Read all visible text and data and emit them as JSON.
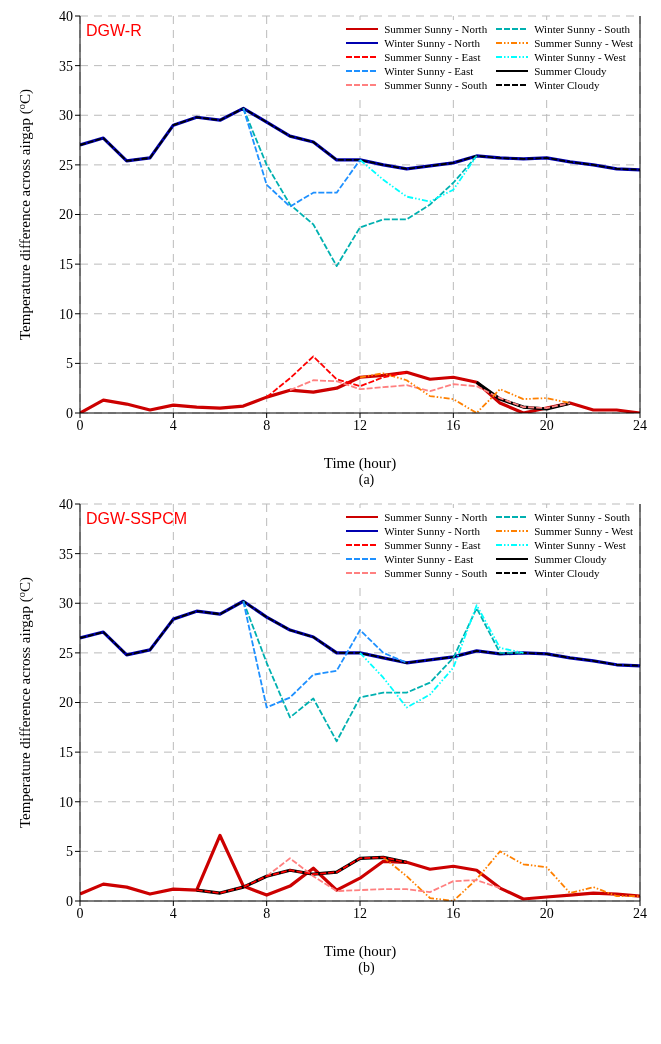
{
  "chart_data": [
    {
      "type": "line",
      "title": "DGW-R",
      "xlabel": "Time (hour)",
      "ylabel": "Temperature difference across airgap ($^{o}$C)",
      "annotations": [
        "(a)"
      ],
      "x": [
        0,
        1,
        2,
        3,
        4,
        5,
        6,
        7,
        8,
        9,
        10,
        11,
        12,
        13,
        14,
        15,
        16,
        17,
        18,
        19,
        20,
        21,
        22,
        23,
        24
      ],
      "xlim": [
        0,
        24
      ],
      "xticks": [
        0,
        4,
        8,
        12,
        16,
        20,
        24
      ],
      "ylim": [
        0,
        40
      ],
      "yticks": [
        0,
        5,
        10,
        15,
        20,
        25,
        30,
        35,
        40
      ],
      "grid": true,
      "legend": "top right",
      "marker": "none",
      "series": [
        {
          "name": "Summer Sunny - North",
          "color": "#cc0000",
          "line_style": "solid",
          "values": [
            0,
            1.3,
            0.9,
            0.3,
            0.8,
            0.6,
            0.5,
            0.7,
            1.6,
            2.3,
            2.1,
            2.5,
            3.6,
            3.8,
            4.1,
            3.4,
            3.6,
            3.1,
            1.0,
            0,
            0.5,
            1.0,
            0.3,
            0.3,
            0
          ]
        },
        {
          "name": "Winter Sunny - North",
          "color": "#0000b0",
          "line_style": "solid",
          "values": [
            27,
            27.7,
            25.4,
            25.7,
            29,
            29.8,
            29.5,
            30.7,
            29.3,
            27.9,
            27.3,
            25.5,
            25.5,
            25.0,
            24.6,
            24.9,
            25.2,
            25.9,
            25.7,
            25.6,
            25.7,
            25.3,
            25.0,
            24.6,
            24.5
          ]
        },
        {
          "name": "Summer Sunny - East",
          "color": "#ff0000",
          "line_style": "dashed",
          "values": [
            null,
            null,
            null,
            null,
            null,
            null,
            null,
            null,
            1.6,
            3.5,
            5.7,
            3.4,
            2.7,
            3.6,
            4.1,
            null,
            null,
            null,
            null,
            null,
            null,
            null,
            null,
            null,
            null
          ]
        },
        {
          "name": "Winter Sunny - East",
          "color": "#1e90ff",
          "line_style": "dashed",
          "values": [
            null,
            null,
            null,
            null,
            null,
            null,
            null,
            30.7,
            23,
            20.8,
            22.2,
            22.2,
            25.5,
            null,
            null,
            null,
            null,
            null,
            null,
            null,
            null,
            null,
            null,
            null,
            null
          ]
        },
        {
          "name": "Summer Sunny - South",
          "color": "#ff8080",
          "line_style": "dashed",
          "values": [
            null,
            null,
            null,
            null,
            null,
            null,
            null,
            null,
            null,
            2.3,
            3.3,
            3.2,
            2.4,
            2.6,
            2.8,
            2.2,
            2.9,
            2.7,
            1.5,
            0.6,
            0.5,
            1.0,
            null,
            null,
            null
          ]
        },
        {
          "name": "Winter Sunny - South",
          "color": "#00b0b0",
          "line_style": "dashed",
          "values": [
            null,
            null,
            null,
            null,
            null,
            null,
            null,
            30.7,
            25,
            21,
            19,
            14.8,
            18.7,
            19.5,
            19.5,
            21,
            23.2,
            25.9,
            null,
            null,
            null,
            null,
            null,
            null,
            null
          ]
        },
        {
          "name": "Summer Sunny - West",
          "color": "#ff8000",
          "line_style": "dotted",
          "values": [
            null,
            null,
            null,
            null,
            null,
            null,
            null,
            null,
            null,
            null,
            null,
            null,
            3.6,
            4.0,
            3.3,
            1.7,
            1.4,
            0,
            2.4,
            1.4,
            1.5,
            1.0,
            null,
            null,
            null
          ]
        },
        {
          "name": "Winter Sunny - West",
          "color": "#00ffff",
          "line_style": "dotted",
          "values": [
            null,
            null,
            null,
            null,
            null,
            null,
            null,
            null,
            null,
            null,
            null,
            null,
            25.5,
            23.5,
            21.8,
            21.3,
            22.5,
            25.9,
            null,
            null,
            null,
            null,
            null,
            null,
            null
          ]
        },
        {
          "name": "Summer Cloudy",
          "color": "#000000",
          "line_style": "solid",
          "values": [
            null,
            null,
            null,
            null,
            null,
            null,
            null,
            null,
            null,
            null,
            null,
            null,
            null,
            null,
            null,
            null,
            null,
            3.1,
            1.4,
            0.6,
            0.4,
            1.0,
            null,
            null,
            null
          ]
        },
        {
          "name": "Winter Cloudy",
          "color": "#000000",
          "line_style": "dashed",
          "values": [
            27,
            27.7,
            25.4,
            25.7,
            29,
            29.8,
            29.5,
            30.7,
            29.3,
            27.9,
            27.3,
            25.5,
            25.5,
            25.0,
            24.6,
            24.9,
            25.2,
            25.9,
            25.7,
            25.6,
            25.7,
            25.3,
            25.0,
            24.6,
            24.5
          ]
        }
      ]
    },
    {
      "type": "line",
      "title": "DGW-SSPCM",
      "xlabel": "Time (hour)",
      "ylabel": "Temperature difference across airgap ($^{o}$C)",
      "annotations": [
        "(b)"
      ],
      "x": [
        0,
        1,
        2,
        3,
        4,
        5,
        6,
        7,
        8,
        9,
        10,
        11,
        12,
        13,
        14,
        15,
        16,
        17,
        18,
        19,
        20,
        21,
        22,
        23,
        24
      ],
      "xlim": [
        0,
        24
      ],
      "xticks": [
        0,
        4,
        8,
        12,
        16,
        20,
        24
      ],
      "ylim": [
        0,
        40
      ],
      "yticks": [
        0,
        5,
        10,
        15,
        20,
        25,
        30,
        35,
        40
      ],
      "grid": true,
      "legend": "top right",
      "marker": "none",
      "series": [
        {
          "name": "Summer Sunny - North",
          "color": "#cc0000",
          "line_style": "solid",
          "values": [
            0.7,
            1.7,
            1.4,
            0.7,
            1.2,
            1.1,
            6.6,
            1.5,
            0.6,
            1.5,
            3.3,
            1.1,
            2.3,
            4.0,
            3.9,
            3.2,
            3.5,
            3.1,
            1.3,
            0.2,
            0.4,
            0.6,
            0.8,
            0.7,
            0.5
          ]
        },
        {
          "name": "Winter Sunny - North",
          "color": "#0000b0",
          "line_style": "solid",
          "values": [
            26.5,
            27.1,
            24.8,
            25.3,
            28.4,
            29.2,
            28.9,
            30.2,
            28.6,
            27.3,
            26.6,
            25,
            25,
            24.5,
            24,
            24.3,
            24.6,
            25.2,
            24.9,
            25,
            24.9,
            24.5,
            24.2,
            23.8,
            23.7
          ]
        },
        {
          "name": "Summer Sunny - East",
          "color": "#ff0000",
          "line_style": "dashed",
          "values": [
            null,
            null,
            null,
            null,
            null,
            1.1,
            0.8,
            1.4,
            2.5,
            3.1,
            2.7,
            2.9,
            4.3,
            4.4,
            3.9,
            null,
            null,
            null,
            null,
            null,
            null,
            null,
            null,
            null,
            null
          ]
        },
        {
          "name": "Winter Sunny - East",
          "color": "#1e90ff",
          "line_style": "dashed",
          "values": [
            null,
            null,
            null,
            null,
            null,
            null,
            null,
            30.2,
            19.5,
            20.5,
            22.8,
            23.2,
            27.3,
            25,
            24,
            null,
            null,
            null,
            null,
            null,
            null,
            null,
            null,
            null,
            null
          ]
        },
        {
          "name": "Summer Sunny - South",
          "color": "#ff8080",
          "line_style": "dashed",
          "values": [
            null,
            null,
            null,
            null,
            null,
            null,
            null,
            null,
            2.5,
            4.3,
            2.5,
            1.0,
            1.1,
            1.2,
            1.2,
            0.9,
            2.0,
            2.1,
            1.3,
            null,
            null,
            null,
            null,
            null,
            null
          ]
        },
        {
          "name": "Winter Sunny - South",
          "color": "#00b0b0",
          "line_style": "dashed",
          "values": [
            null,
            null,
            null,
            null,
            null,
            null,
            null,
            30.2,
            24,
            18.5,
            20.4,
            16.1,
            20.5,
            21,
            21,
            22,
            24.5,
            29.5,
            25,
            25,
            null,
            null,
            null,
            null,
            null
          ]
        },
        {
          "name": "Summer Sunny - West",
          "color": "#ff8000",
          "line_style": "dotted",
          "values": [
            null,
            null,
            null,
            null,
            null,
            null,
            null,
            null,
            null,
            null,
            null,
            null,
            null,
            4.4,
            2.5,
            0.3,
            0,
            2.2,
            5.0,
            3.7,
            3.4,
            0.8,
            1.4,
            0.5,
            0.5
          ]
        },
        {
          "name": "Winter Sunny - West",
          "color": "#00ffff",
          "line_style": "dotted",
          "values": [
            null,
            null,
            null,
            null,
            null,
            null,
            null,
            null,
            null,
            null,
            null,
            null,
            25,
            22.5,
            19.5,
            20.8,
            23.5,
            29.8,
            25.5,
            25,
            null,
            null,
            null,
            null,
            null
          ]
        },
        {
          "name": "Summer Cloudy",
          "color": "#000000",
          "line_style": "solid",
          "values": [
            null,
            null,
            null,
            null,
            null,
            1.1,
            0.8,
            1.4,
            2.5,
            3.1,
            2.7,
            2.9,
            4.3,
            4.4,
            3.9,
            null,
            null,
            null,
            null,
            null,
            null,
            null,
            null,
            null,
            null
          ]
        },
        {
          "name": "Winter Cloudy",
          "color": "#000000",
          "line_style": "dashed",
          "values": [
            26.5,
            27.1,
            24.8,
            25.3,
            28.4,
            29.2,
            28.9,
            30.2,
            28.6,
            27.3,
            26.6,
            25,
            25,
            24.5,
            24,
            24.3,
            24.6,
            25.2,
            24.9,
            25,
            24.9,
            24.5,
            24.2,
            23.8,
            23.7
          ]
        }
      ]
    }
  ]
}
